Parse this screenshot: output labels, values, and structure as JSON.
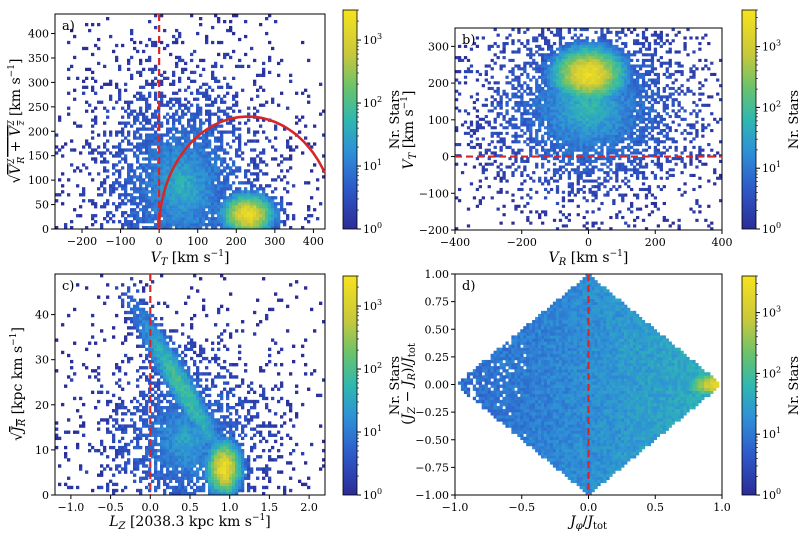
{
  "figure": {
    "colorbar_label": "Nr. Stars"
  },
  "chart_data": [
    {
      "id": "a",
      "type": "heatmap",
      "panel_label": "a)",
      "xlabel": "V_T [km s^-1]",
      "ylabel": "sqrt(V_R^2 + V_z^2) [km s^-1]",
      "xlim": [
        -270,
        430
      ],
      "ylim": [
        0,
        440
      ],
      "xticks": [
        -200,
        -100,
        0,
        100,
        200,
        300,
        400
      ],
      "xtick_labels": [
        "−200",
        "−100",
        "0",
        "100",
        "200",
        "300",
        "400"
      ],
      "yticks": [
        0,
        50,
        100,
        150,
        200,
        250,
        300,
        350,
        400
      ],
      "ytick_labels": [
        "0",
        "50",
        "100",
        "150",
        "200",
        "250",
        "300",
        "350",
        "400"
      ],
      "density_peak": {
        "x": 230,
        "y": 30,
        "count": 3000
      },
      "vline": {
        "x": 0,
        "color": "#d62728",
        "style": "dashed"
      },
      "circle": {
        "center": [
          230,
          0
        ],
        "radius": 230,
        "color": "#d62728"
      },
      "colorbar": {
        "scale": "log",
        "ticks": [
          "10^0",
          "10^1",
          "10^2",
          "10^3"
        ],
        "max": 3000
      }
    },
    {
      "id": "b",
      "type": "heatmap",
      "panel_label": "b)",
      "xlabel": "V_R [km s^-1]",
      "ylabel": "V_T [km s^-1]",
      "xlim": [
        -400,
        400
      ],
      "ylim": [
        -200,
        350
      ],
      "xticks": [
        -400,
        -200,
        0,
        200,
        400
      ],
      "xtick_labels": [
        "−400",
        "−200",
        "0",
        "200",
        "400"
      ],
      "yticks": [
        -200,
        -100,
        0,
        100,
        200,
        300
      ],
      "ytick_labels": [
        "−200",
        "−100",
        "0",
        "100",
        "200",
        "300"
      ],
      "density_peak": {
        "x": 0,
        "y": 225,
        "count": 4000
      },
      "hline": {
        "y": 0,
        "color": "#d62728",
        "style": "dashed"
      },
      "colorbar": {
        "scale": "log",
        "ticks": [
          "10^0",
          "10^1",
          "10^2",
          "10^3"
        ],
        "max": 4000
      }
    },
    {
      "id": "c",
      "type": "heatmap",
      "panel_label": "c)",
      "xlabel": "L_Z [2038.3 kpc km s^-1]",
      "ylabel": "sqrt(J_R) [kpc km s^-1]",
      "xlim": [
        -1.2,
        2.2
      ],
      "ylim": [
        0,
        49
      ],
      "xticks": [
        -1.0,
        -0.5,
        0.0,
        0.5,
        1.0,
        1.5,
        2.0
      ],
      "xtick_labels": [
        "−1.0",
        "−0.5",
        "0.0",
        "0.5",
        "1.0",
        "1.5",
        "2.0"
      ],
      "yticks": [
        0,
        10,
        20,
        30,
        40
      ],
      "ytick_labels": [
        "0",
        "10",
        "20",
        "30",
        "40"
      ],
      "density_peak": {
        "x": 0.93,
        "y": 5,
        "count": 3000
      },
      "vline": {
        "x": 0,
        "color": "#d62728",
        "style": "dashed"
      },
      "colorbar": {
        "scale": "log",
        "ticks": [
          "10^0",
          "10^1",
          "10^2",
          "10^3"
        ],
        "max": 3000
      }
    },
    {
      "id": "d",
      "type": "heatmap",
      "panel_label": "d)",
      "xlabel": "J_phi / J_tot",
      "ylabel": "(J_Z − J_R) / J_tot",
      "xlim": [
        -1.0,
        1.0
      ],
      "ylim": [
        -1.0,
        1.0
      ],
      "xticks": [
        -1.0,
        -0.5,
        0.0,
        0.5,
        1.0
      ],
      "xtick_labels": [
        "−1.0",
        "−0.5",
        "0.0",
        "0.5",
        "1.0"
      ],
      "yticks": [
        -1.0,
        -0.75,
        -0.5,
        -0.25,
        0.0,
        0.25,
        0.5,
        0.75,
        1.0
      ],
      "ytick_labels": [
        "−1.00",
        "−0.75",
        "−0.50",
        "−0.25",
        "0.00",
        "0.25",
        "0.50",
        "0.75",
        "1.00"
      ],
      "density_peak": {
        "x": 1.0,
        "y": 0.0,
        "count": 4000
      },
      "vline": {
        "x": 0,
        "color": "#d62728",
        "style": "dashed"
      },
      "colorbar": {
        "scale": "log",
        "ticks": [
          "10^0",
          "10^1",
          "10^2",
          "10^3"
        ],
        "max": 4000
      }
    }
  ]
}
